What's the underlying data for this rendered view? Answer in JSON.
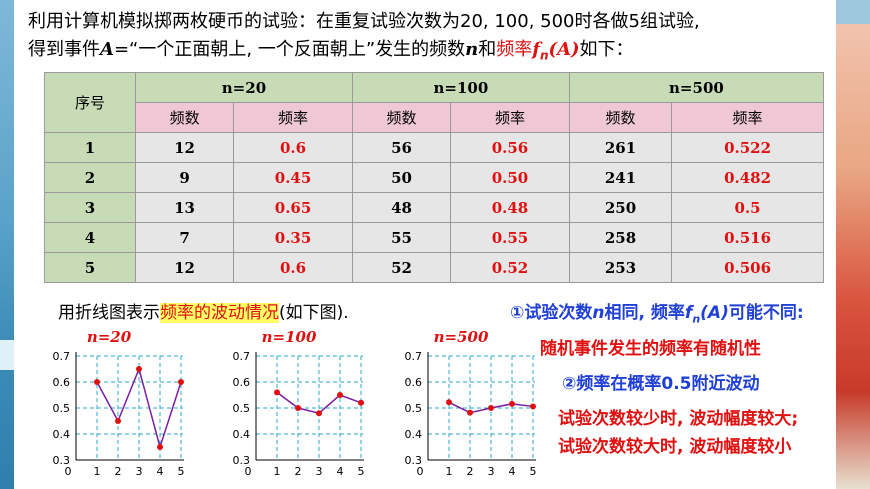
{
  "intro": {
    "line1": "利用计算机模拟掷两枚硬币的试验：在重复试验次数为20, 100, 500时各做5组试验,",
    "line2_a": "得到事件",
    "line2_A": "A",
    "line2_b": "=“一个正面朝上, 一个反面朝上”发生的频数",
    "line2_n": "n",
    "line2_c": "和",
    "line2_red": "频率",
    "line2_f": "f",
    "line2_sub": "n",
    "line2_fa": "(A)",
    "line2_d": "如下："
  },
  "table": {
    "seq_header": "序号",
    "groups": [
      "n=20",
      "n=100",
      "n=500"
    ],
    "sub_headers": [
      "频数",
      "频率"
    ],
    "rows": [
      {
        "idx": "1",
        "c20": "12",
        "f20": "0.6",
        "c100": "56",
        "f100": "0.56",
        "c500": "261",
        "f500": "0.522"
      },
      {
        "idx": "2",
        "c20": "9",
        "f20": "0.45",
        "c100": "50",
        "f100": "0.50",
        "c500": "241",
        "f500": "0.482"
      },
      {
        "idx": "3",
        "c20": "13",
        "f20": "0.65",
        "c100": "48",
        "f100": "0.48",
        "c500": "250",
        "f500": "0.5"
      },
      {
        "idx": "4",
        "c20": "7",
        "f20": "0.35",
        "c100": "55",
        "f100": "0.55",
        "c500": "258",
        "f500": "0.516"
      },
      {
        "idx": "5",
        "c20": "12",
        "f20": "0.6",
        "c100": "52",
        "f100": "0.52",
        "c500": "253",
        "f500": "0.506"
      }
    ]
  },
  "caption": {
    "pre": "用折线图表示",
    "highlight": "频率的波动情况",
    "post": "(如下图)."
  },
  "chart_data": [
    {
      "type": "line",
      "title": "n=20",
      "x": [
        1,
        2,
        3,
        4,
        5
      ],
      "y": [
        0.6,
        0.45,
        0.65,
        0.35,
        0.6
      ],
      "ylim": [
        0.3,
        0.7
      ],
      "yticks": [
        "0.3",
        "0.4",
        "0.5",
        "0.6",
        "0.7"
      ],
      "xticks": [
        "0",
        "1",
        "2",
        "3",
        "4",
        "5"
      ],
      "grid": true,
      "line_color": "#7a1fa0",
      "point_color": "#e01010"
    },
    {
      "type": "line",
      "title": "n=100",
      "x": [
        1,
        2,
        3,
        4,
        5
      ],
      "y": [
        0.56,
        0.5,
        0.48,
        0.55,
        0.52
      ],
      "ylim": [
        0.3,
        0.7
      ],
      "yticks": [
        "0.3",
        "0.4",
        "0.5",
        "0.6",
        "0.7"
      ],
      "xticks": [
        "0",
        "1",
        "2",
        "3",
        "4",
        "5"
      ],
      "grid": true,
      "line_color": "#7a1fa0",
      "point_color": "#e01010"
    },
    {
      "type": "line",
      "title": "n=500",
      "x": [
        1,
        2,
        3,
        4,
        5
      ],
      "y": [
        0.522,
        0.482,
        0.5,
        0.516,
        0.506
      ],
      "ylim": [
        0.3,
        0.7
      ],
      "yticks": [
        "0.3",
        "0.4",
        "0.5",
        "0.6",
        "0.7"
      ],
      "xticks": [
        "0",
        "1",
        "2",
        "3",
        "4",
        "5"
      ],
      "grid": true,
      "line_color": "#7a1fa0",
      "point_color": "#e01010"
    }
  ],
  "notes": {
    "n1_a": "①试验次数",
    "n1_n": "n",
    "n1_b": "相同, 频率",
    "n1_f": "f",
    "n1_sub": "n",
    "n1_fa": "(A)",
    "n1_c": "可能不同:",
    "n2": "随机事件发生的频率有随机性",
    "n3": "②频率在概率0.5附近波动",
    "n4": "试验次数较少时, 波动幅度较大;",
    "n5": "试验次数较大时, 波动幅度较小"
  },
  "colors": {
    "red": "#e01010",
    "blue": "#1f3fd6",
    "header_green": "#c6dbb6",
    "header_pink": "#efc7d5",
    "cell_gray": "#e6e6e6"
  }
}
